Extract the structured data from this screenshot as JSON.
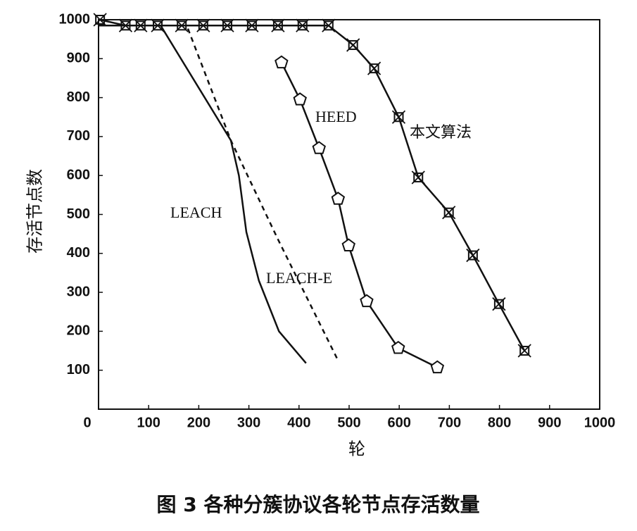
{
  "chart_data": {
    "type": "line",
    "x_label": "轮",
    "y_label": "存活节点数",
    "caption": "图 3   各种分簇协议各轮节点存活数量",
    "xlim": [
      0,
      1000
    ],
    "xticks": [
      0,
      100,
      200,
      300,
      400,
      500,
      600,
      700,
      800,
      900,
      1000
    ],
    "ylim": [
      0,
      1000
    ],
    "yticks": [
      100,
      200,
      300,
      400,
      500,
      600,
      700,
      800,
      900,
      1000
    ],
    "series": [
      {
        "name": "本文算法",
        "color": "#111111",
        "marker": "xbox",
        "dashed": false,
        "x": [
          3,
          54,
          84,
          118,
          166,
          209,
          257,
          306,
          358,
          407,
          459,
          508,
          550,
          599,
          638,
          699,
          747,
          799,
          850
        ],
        "values": [
          1000,
          985,
          985,
          985,
          985,
          985,
          985,
          985,
          985,
          985,
          985,
          935,
          875,
          750,
          595,
          505,
          395,
          270,
          150
        ]
      },
      {
        "name": "HEED",
        "color": "#111111",
        "marker": "pentagon",
        "dashed": false,
        "x": [
          365,
          402,
          440,
          478,
          499,
          535,
          598,
          676
        ],
        "values": [
          890,
          795,
          670,
          540,
          420,
          277,
          157,
          107
        ]
      },
      {
        "name": "LEACH",
        "color": "#111111",
        "marker": "none",
        "dashed": false,
        "x": [
          0,
          124,
          264,
          280,
          295,
          320,
          360,
          414
        ],
        "values": [
          985,
          985,
          690,
          600,
          455,
          330,
          200,
          118
        ]
      },
      {
        "name": "LEACH-E",
        "color": "#111111",
        "marker": "none",
        "dashed": true,
        "x": [
          0,
          176,
          264,
          358,
          478
        ],
        "values": [
          985,
          985,
          690,
          436,
          125
        ]
      }
    ]
  }
}
